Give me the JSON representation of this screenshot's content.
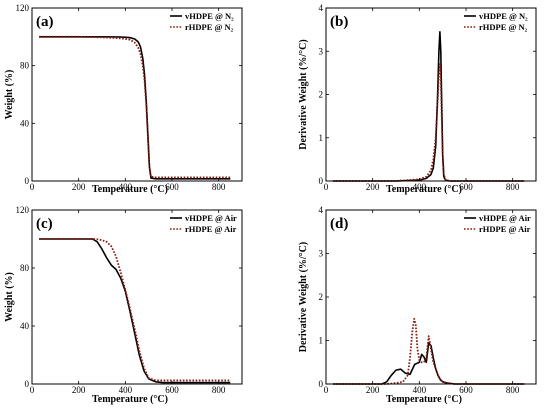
{
  "figure": {
    "page_color": "#ffffff",
    "series_colors": {
      "vHDPE": "#000000",
      "rHDPE": "#8b1a0e"
    }
  },
  "chart_data": [
    {
      "id": "a",
      "type": "line",
      "panel_label": "(a)",
      "xlabel": "Temperature (°C)",
      "ylabel": "Weight (%)",
      "xlim": [
        0,
        900
      ],
      "ylim": [
        0,
        120
      ],
      "xticks": [
        0,
        200,
        400,
        600,
        800
      ],
      "yticks": [
        0,
        40,
        80,
        120
      ],
      "legend_position": "top-right",
      "series": [
        {
          "name": "vHDPE @ N₂",
          "style": "solid",
          "x": [
            30,
            100,
            200,
            300,
            380,
            420,
            440,
            455,
            465,
            475,
            482,
            490,
            497,
            503,
            510,
            530,
            600,
            700,
            850
          ],
          "y": [
            100,
            100,
            100,
            100,
            99.9,
            99.5,
            98.5,
            96.5,
            93,
            85,
            74,
            55,
            30,
            10,
            2,
            1.5,
            1.5,
            1.5,
            1.5
          ]
        },
        {
          "name": "rHDPE @ N₂",
          "style": "dotted",
          "x": [
            30,
            100,
            200,
            300,
            380,
            420,
            440,
            455,
            465,
            475,
            482,
            490,
            497,
            503,
            510,
            530,
            600,
            700,
            850
          ],
          "y": [
            100,
            100,
            100,
            99.7,
            99,
            98,
            96,
            92.5,
            88,
            80,
            70,
            52,
            30,
            10,
            3,
            2.5,
            2.5,
            2.5,
            2.5
          ]
        }
      ]
    },
    {
      "id": "b",
      "type": "line",
      "panel_label": "(b)",
      "xlabel": "Temperature (°C)",
      "ylabel": "Derivative Weight (%/°C)",
      "xlim": [
        0,
        900
      ],
      "ylim": [
        0,
        4
      ],
      "xticks": [
        0,
        200,
        400,
        600,
        800
      ],
      "yticks": [
        0,
        1,
        2,
        3,
        4
      ],
      "legend_position": "top-right",
      "series": [
        {
          "name": "vHDPE @ N₂",
          "style": "solid",
          "x": [
            30,
            300,
            400,
            430,
            450,
            460,
            470,
            478,
            484,
            488,
            492,
            496,
            500,
            505,
            512,
            530,
            600,
            850
          ],
          "y": [
            0,
            0,
            0.02,
            0.06,
            0.15,
            0.3,
            0.8,
            1.9,
            3.0,
            3.45,
            3.0,
            1.8,
            0.6,
            0.1,
            0.02,
            0,
            0,
            0
          ]
        },
        {
          "name": "rHDPE @ N₂",
          "style": "dotted",
          "x": [
            30,
            300,
            400,
            430,
            450,
            460,
            470,
            478,
            484,
            488,
            492,
            496,
            500,
            505,
            512,
            530,
            600,
            850
          ],
          "y": [
            0,
            0,
            0.04,
            0.1,
            0.25,
            0.5,
            1.0,
            1.8,
            2.45,
            2.7,
            2.4,
            1.5,
            0.6,
            0.15,
            0.03,
            0,
            0,
            0
          ]
        }
      ]
    },
    {
      "id": "c",
      "type": "line",
      "panel_label": "(c)",
      "xlabel": "Temperature (°C)",
      "ylabel": "Weight (%)",
      "xlim": [
        0,
        900
      ],
      "ylim": [
        0,
        120
      ],
      "xticks": [
        0,
        200,
        400,
        600,
        800
      ],
      "yticks": [
        0,
        40,
        80,
        120
      ],
      "legend_position": "top-right",
      "series": [
        {
          "name": "vHDPE @ Air",
          "style": "solid",
          "x": [
            30,
            200,
            260,
            280,
            300,
            320,
            340,
            360,
            380,
            400,
            420,
            440,
            460,
            480,
            500,
            530,
            560,
            600,
            850
          ],
          "y": [
            100,
            100,
            100,
            98,
            93,
            87,
            82,
            79,
            73,
            64,
            50,
            35,
            20,
            9,
            3.5,
            1.5,
            1,
            1,
            1
          ]
        },
        {
          "name": "rHDPE @ Air",
          "style": "dotted",
          "x": [
            30,
            200,
            260,
            280,
            300,
            320,
            340,
            360,
            380,
            400,
            420,
            440,
            460,
            480,
            500,
            530,
            560,
            600,
            850
          ],
          "y": [
            100,
            100,
            100,
            99.8,
            99.2,
            98,
            95,
            88,
            77,
            65,
            52,
            38,
            23,
            11,
            4,
            2.5,
            2.5,
            2.5,
            2.5
          ]
        }
      ]
    },
    {
      "id": "d",
      "type": "line",
      "panel_label": "(d)",
      "xlabel": "Temperature (°C)",
      "ylabel": "Derivative Weight (%/°C)",
      "xlim": [
        0,
        900
      ],
      "ylim": [
        0,
        4
      ],
      "xticks": [
        0,
        200,
        400,
        600,
        800
      ],
      "yticks": [
        0,
        1,
        2,
        3,
        4
      ],
      "legend_position": "top-right",
      "series": [
        {
          "name": "vHDPE @ Air",
          "style": "solid",
          "x": [
            30,
            240,
            260,
            280,
            300,
            320,
            340,
            360,
            380,
            400,
            410,
            420,
            430,
            440,
            450,
            460,
            470,
            480,
            490,
            500,
            520,
            550,
            850
          ],
          "y": [
            0,
            0,
            0.05,
            0.2,
            0.32,
            0.34,
            0.25,
            0.22,
            0.45,
            0.5,
            0.68,
            0.62,
            0.5,
            0.95,
            0.88,
            0.6,
            0.35,
            0.2,
            0.1,
            0.05,
            0.02,
            0,
            0
          ]
        },
        {
          "name": "rHDPE @ Air",
          "style": "dotted",
          "x": [
            30,
            260,
            300,
            330,
            350,
            360,
            370,
            378,
            385,
            392,
            400,
            410,
            420,
            430,
            440,
            450,
            460,
            470,
            480,
            490,
            500,
            520,
            550,
            850
          ],
          "y": [
            0,
            0,
            0.02,
            0.05,
            0.2,
            0.6,
            1.2,
            1.5,
            1.35,
            0.8,
            0.55,
            0.5,
            0.5,
            0.6,
            1.1,
            0.8,
            0.5,
            0.35,
            0.2,
            0.1,
            0.05,
            0.02,
            0,
            0
          ]
        }
      ]
    }
  ]
}
